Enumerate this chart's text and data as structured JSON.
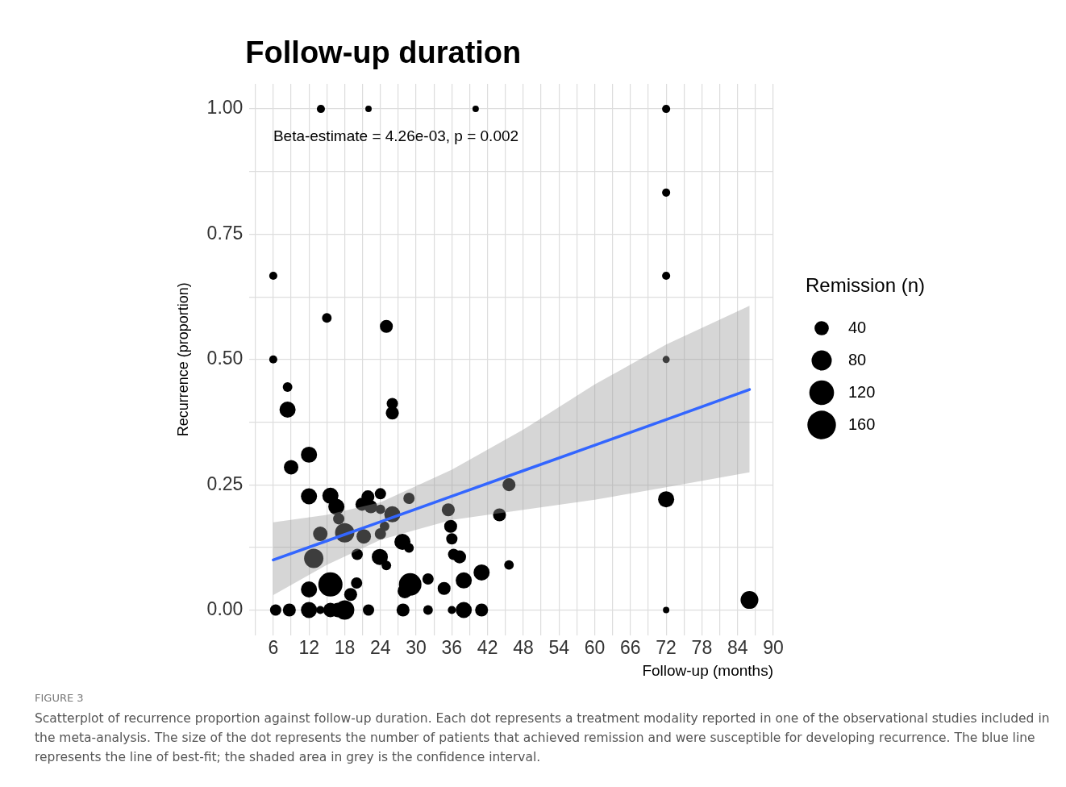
{
  "chart_data": {
    "type": "bubble",
    "title": "Follow-up duration",
    "xlabel": "Follow-up (months)",
    "ylabel": "Recurrence (proportion)",
    "legend_title": "Remission (n)",
    "xlim": [
      2,
      90
    ],
    "ylim": [
      -0.05,
      1.05
    ],
    "xticks": [
      {
        "value": 3,
        "label": null
      },
      6,
      {
        "value": 9,
        "label": null
      },
      12,
      {
        "value": 15,
        "label": null
      },
      18,
      {
        "value": 21,
        "label": null
      },
      24,
      {
        "value": 27,
        "label": null
      },
      30,
      {
        "value": 33,
        "label": null
      },
      36,
      {
        "value": 39,
        "label": null
      },
      42,
      {
        "value": 45,
        "label": null
      },
      48,
      {
        "value": 51,
        "label": null
      },
      54,
      {
        "value": 57,
        "label": null
      },
      60,
      {
        "value": 63,
        "label": null
      },
      66,
      {
        "value": 69,
        "label": null
      },
      72,
      {
        "value": 75,
        "label": null
      },
      78,
      {
        "value": 81,
        "label": null
      },
      84,
      {
        "value": 87,
        "label": null
      },
      90
    ],
    "yticks": [
      {
        "value": 0,
        "label": "0.00"
      },
      {
        "value": 0.125,
        "label": null
      },
      {
        "value": 0.25,
        "label": "0.25"
      },
      {
        "value": 0.375,
        "label": null
      },
      {
        "value": 0.5,
        "label": "0.50"
      },
      {
        "value": 0.625,
        "label": null
      },
      {
        "value": 0.75,
        "label": "0.75"
      },
      {
        "value": 0.875,
        "label": null
      },
      {
        "value": 1,
        "label": "1.00"
      }
    ],
    "grid": true,
    "size_legend": [
      40,
      80,
      120,
      160
    ],
    "annotations": [
      "Beta-estimate = 4.26e-03, p = 0.002",
      "FIGURE 3",
      "Scatterplot of recurrence proportion against follow-up duration. Each dot represents a treatment modality reported in one of the observational studies included in the meta-analysis. The size of the dot represents the number of patients that achieved remission and were susceptible for developing recurrence. The blue line represents the line of best-fit; the shaded area in grey is the confidence interval."
    ],
    "series": [
      {
        "type": "bubble",
        "color": "#000000",
        "x": [
          14,
          22,
          40,
          72,
          72,
          72,
          72,
          6,
          6,
          15,
          25,
          8.4,
          8.4,
          26,
          26,
          9,
          12,
          12,
          15.6,
          16.6,
          17,
          13.9,
          12.8,
          18,
          21.2,
          20.1,
          21.9,
          20.9,
          24,
          22.4,
          24,
          26,
          28.8,
          24.7,
          24,
          27.7,
          28.8,
          23.9,
          25,
          15.6,
          12,
          20,
          19,
          29,
          28.1,
          32,
          34.7,
          38,
          41,
          45.6,
          45.6,
          44,
          35.4,
          35.8,
          36,
          36.3,
          37.3,
          6.4,
          8.7,
          12,
          13.9,
          15.6,
          16.8,
          18,
          22,
          27.8,
          32,
          36,
          38,
          41,
          72,
          72,
          86
        ],
        "values": [
          1,
          1,
          1,
          1,
          0.833,
          0.667,
          0.5,
          0.667,
          0.5,
          0.583,
          0.566,
          0.445,
          0.4,
          0.412,
          0.393,
          0.285,
          0.31,
          0.227,
          0.228,
          0.206,
          0.182,
          0.152,
          0.103,
          0.154,
          0.147,
          0.111,
          0.226,
          0.211,
          0.232,
          0.206,
          0.201,
          0.191,
          0.223,
          0.167,
          0.152,
          0.136,
          0.124,
          0.106,
          0.089,
          0.051,
          0.041,
          0.054,
          0.031,
          0.051,
          0.038,
          0.062,
          0.043,
          0.059,
          0.075,
          0.09,
          0.25,
          0.19,
          0.2,
          0.167,
          0.142,
          0.111,
          0.106,
          0,
          0,
          0,
          0,
          0,
          0,
          0,
          0,
          0,
          0,
          0,
          0,
          0,
          0.221,
          0,
          0.02
        ],
        "sizes": [
          13,
          8,
          8,
          13,
          13,
          13,
          10,
          13,
          13,
          18,
          33,
          18,
          51,
          25,
          33,
          41,
          51,
          51,
          51,
          51,
          25,
          41,
          73,
          73,
          41,
          25,
          33,
          33,
          25,
          33,
          18,
          51,
          25,
          18,
          25,
          51,
          18,
          51,
          18,
          115,
          51,
          25,
          33,
          100,
          41,
          25,
          33,
          51,
          51,
          18,
          33,
          33,
          33,
          33,
          25,
          25,
          33,
          25,
          33,
          51,
          13,
          41,
          41,
          73,
          25,
          33,
          18,
          13,
          51,
          33,
          51,
          8,
          62
        ]
      },
      {
        "type": "line",
        "color": "#3366ff",
        "x": [
          6,
          15,
          24,
          36,
          48,
          60,
          72,
          86
        ],
        "values": [
          0.1,
          0.138,
          0.176,
          0.227,
          0.278,
          0.329,
          0.38,
          0.44
        ],
        "lower": [
          0.03,
          0.09,
          0.14,
          0.18,
          0.2,
          0.22,
          0.245,
          0.275
        ],
        "upper": [
          0.175,
          0.19,
          0.215,
          0.28,
          0.36,
          0.45,
          0.53,
          0.607
        ]
      }
    ]
  }
}
